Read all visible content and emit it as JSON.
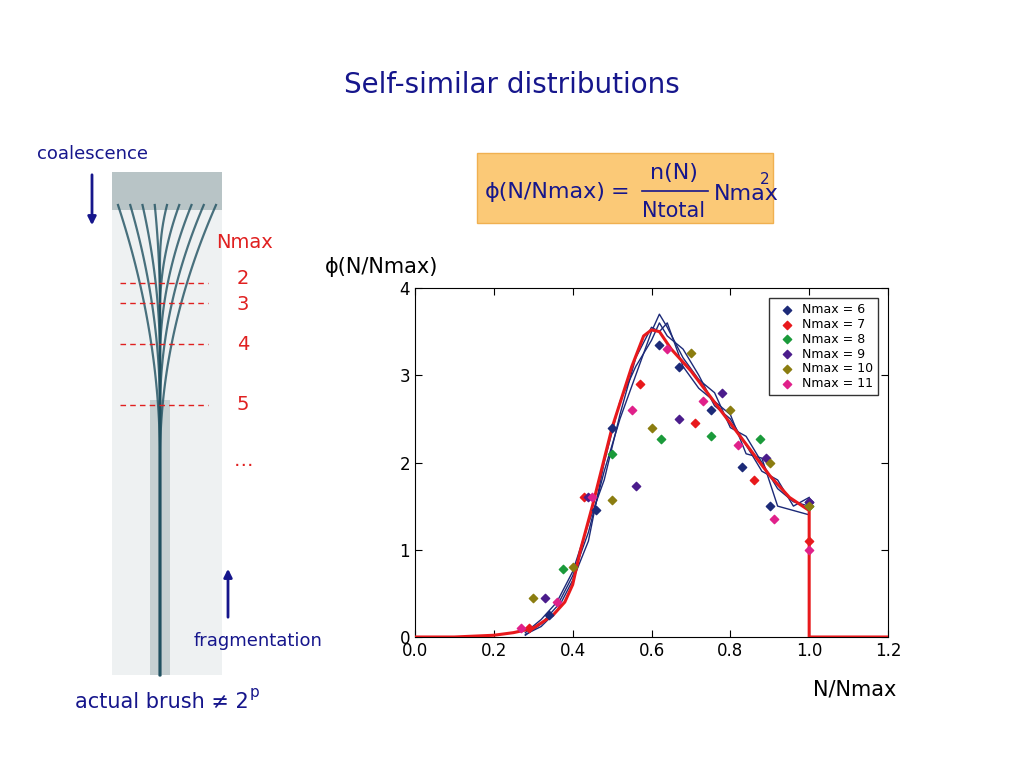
{
  "title": "Self-similar distributions",
  "formula": {
    "lhs": "ϕ(N/Nmax)",
    "equals": "=",
    "numerator": "n(N)",
    "denominator": "Ntotal",
    "factor": "Nmax",
    "exponent": "2"
  },
  "photo_annotations": {
    "top_arrow": "coalescence",
    "bottom_arrow": "fragmentation",
    "levels_title": "Nmax",
    "levels": [
      "2",
      "3",
      "4",
      "5",
      "…"
    ],
    "caption": {
      "text": "actual brush ≠ 2",
      "superscript": "p"
    }
  },
  "chart_data": {
    "type": "scatter",
    "y_label": "ϕ(N/Nmax)",
    "x_label": "N/Nmax",
    "xlim": [
      0.0,
      1.2
    ],
    "xticks": [
      0.0,
      0.2,
      0.4,
      0.6,
      0.8,
      1.0,
      1.2
    ],
    "ylim": [
      0,
      4
    ],
    "yticks": [
      0,
      1,
      2,
      3,
      4
    ],
    "grid": false,
    "legend": "upper right",
    "series": [
      {
        "type": "line",
        "color": "#1c2a78",
        "line_style": "solid",
        "x": [
          0.28,
          0.32,
          0.36,
          0.4,
          0.44,
          0.48,
          0.52,
          0.56,
          0.6,
          0.62,
          0.64,
          0.68,
          0.72,
          0.76,
          0.8,
          0.84,
          0.88,
          0.92,
          0.96,
          1.0
        ],
        "values": [
          0.02,
          0.15,
          0.35,
          0.7,
          1.2,
          1.9,
          2.5,
          3.0,
          3.5,
          3.7,
          3.55,
          3.2,
          2.95,
          2.8,
          2.4,
          2.3,
          2.0,
          1.7,
          1.55,
          1.5
        ]
      },
      {
        "type": "line",
        "color": "#1c2a78",
        "line_style": "solid",
        "x": [
          0.28,
          0.32,
          0.36,
          0.4,
          0.44,
          0.48,
          0.52,
          0.56,
          0.6,
          0.62,
          0.64,
          0.68,
          0.72,
          0.76,
          0.8,
          0.84,
          0.88,
          0.92,
          0.96,
          1.0
        ],
        "values": [
          0.03,
          0.12,
          0.3,
          0.65,
          1.1,
          2.0,
          2.7,
          3.1,
          3.4,
          3.6,
          3.45,
          3.3,
          3.0,
          2.65,
          2.5,
          2.2,
          1.9,
          1.8,
          1.5,
          1.6
        ]
      },
      {
        "type": "line",
        "color": "#1c2a78",
        "line_style": "solid",
        "x": [
          0.28,
          0.32,
          0.36,
          0.4,
          0.44,
          0.48,
          0.52,
          0.56,
          0.6,
          0.62,
          0.64,
          0.68,
          0.72,
          0.76,
          0.8,
          0.84,
          0.88,
          0.92,
          0.96,
          1.0
        ],
        "values": [
          0.05,
          0.2,
          0.4,
          0.75,
          1.3,
          1.8,
          2.55,
          3.2,
          3.55,
          3.5,
          3.6,
          3.1,
          2.85,
          2.7,
          2.55,
          2.1,
          2.05,
          1.5,
          1.45,
          1.4
        ]
      },
      {
        "type": "line",
        "color": "#e8191c",
        "line_style": "solid",
        "x": [
          0.0,
          0.1,
          0.2,
          0.25,
          0.3,
          0.35,
          0.38,
          0.4,
          0.42,
          0.45,
          0.5,
          0.55,
          0.58,
          0.6,
          0.62,
          0.65,
          0.7,
          0.75,
          0.8,
          0.85,
          0.9,
          0.95,
          1.0,
          1.0,
          1.2
        ],
        "values": [
          0,
          0,
          0.02,
          0.05,
          0.1,
          0.25,
          0.4,
          0.6,
          1.0,
          1.5,
          2.4,
          3.1,
          3.45,
          3.52,
          3.5,
          3.3,
          3.05,
          2.75,
          2.45,
          2.15,
          1.85,
          1.6,
          1.45,
          0,
          0
        ]
      },
      {
        "name": "Nmax = 6",
        "color": "#1c2a78",
        "marker": "diamond",
        "x": [
          0.34,
          0.46,
          0.5,
          0.62,
          0.67,
          0.75,
          0.83,
          0.9,
          1.0
        ],
        "values": [
          0.25,
          1.45,
          2.4,
          3.35,
          3.1,
          2.6,
          1.95,
          1.5,
          1.55
        ]
      },
      {
        "name": "Nmax = 7",
        "color": "#e8191c",
        "marker": "diamond",
        "x": [
          0.29,
          0.43,
          0.57,
          0.71,
          0.86,
          1.0
        ],
        "values": [
          0.1,
          1.6,
          2.9,
          2.45,
          1.8,
          1.1
        ]
      },
      {
        "name": "Nmax = 8",
        "color": "#1a9a3a",
        "marker": "diamond",
        "x": [
          0.375,
          0.5,
          0.625,
          0.75,
          0.875,
          1.0
        ],
        "values": [
          0.78,
          2.1,
          2.27,
          2.3,
          2.27,
          1.5
        ]
      },
      {
        "name": "Nmax = 9",
        "color": "#4b1c8c",
        "marker": "diamond",
        "x": [
          0.33,
          0.44,
          0.56,
          0.67,
          0.78,
          0.89,
          1.0
        ],
        "values": [
          0.45,
          1.6,
          1.73,
          2.5,
          2.8,
          2.05,
          1.55
        ]
      },
      {
        "name": "Nmax = 10",
        "color": "#8b7d10",
        "marker": "diamond",
        "x": [
          0.3,
          0.4,
          0.5,
          0.6,
          0.7,
          0.8,
          0.9,
          1.0
        ],
        "values": [
          0.45,
          0.8,
          1.57,
          2.4,
          3.25,
          2.6,
          2.0,
          1.5
        ]
      },
      {
        "name": "Nmax = 11",
        "color": "#e0208a",
        "marker": "diamond",
        "x": [
          0.27,
          0.36,
          0.45,
          0.55,
          0.64,
          0.73,
          0.82,
          0.91,
          1.0
        ],
        "values": [
          0.1,
          0.4,
          1.6,
          2.6,
          3.3,
          2.7,
          2.2,
          1.35,
          1.0
        ]
      }
    ]
  }
}
